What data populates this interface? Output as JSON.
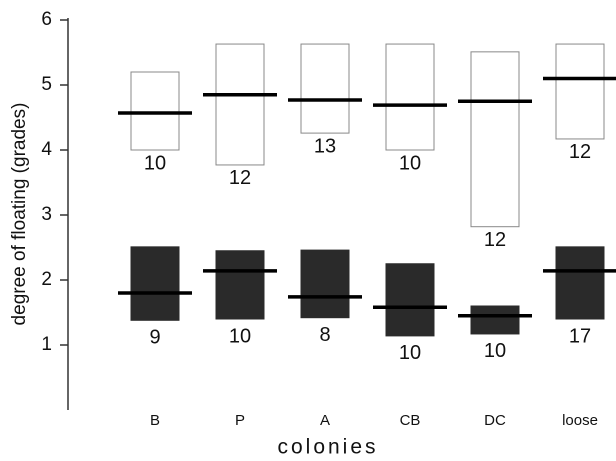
{
  "chart_data": {
    "type": "floating-bar",
    "y_label": "degree of floating (grades)",
    "x_label": "colonies",
    "categories": [
      "B",
      "P",
      "A",
      "CB",
      "DC",
      "loose"
    ],
    "ylim": [
      0,
      6
    ],
    "yticks": [
      1,
      2,
      3,
      4,
      5,
      6
    ],
    "series": [
      {
        "color": "#ffffff",
        "edge": "#888888",
        "low": [
          4.0,
          3.77,
          4.26,
          4.0,
          2.82,
          4.17
        ],
        "high": [
          5.2,
          5.63,
          5.63,
          5.63,
          5.51,
          5.63
        ],
        "median": [
          4.57,
          4.85,
          4.77,
          4.69,
          4.75,
          5.1
        ],
        "n": [
          10,
          12,
          13,
          10,
          12,
          12
        ]
      },
      {
        "color": "#2a2a2a",
        "edge": "#2a2a2a",
        "low": [
          1.38,
          1.4,
          1.42,
          1.14,
          1.17,
          1.4
        ],
        "high": [
          2.51,
          2.45,
          2.46,
          2.25,
          1.6,
          2.51
        ],
        "median": [
          1.8,
          2.14,
          1.74,
          1.58,
          1.45,
          2.14
        ],
        "n": [
          9,
          10,
          8,
          10,
          10,
          17
        ]
      }
    ]
  }
}
